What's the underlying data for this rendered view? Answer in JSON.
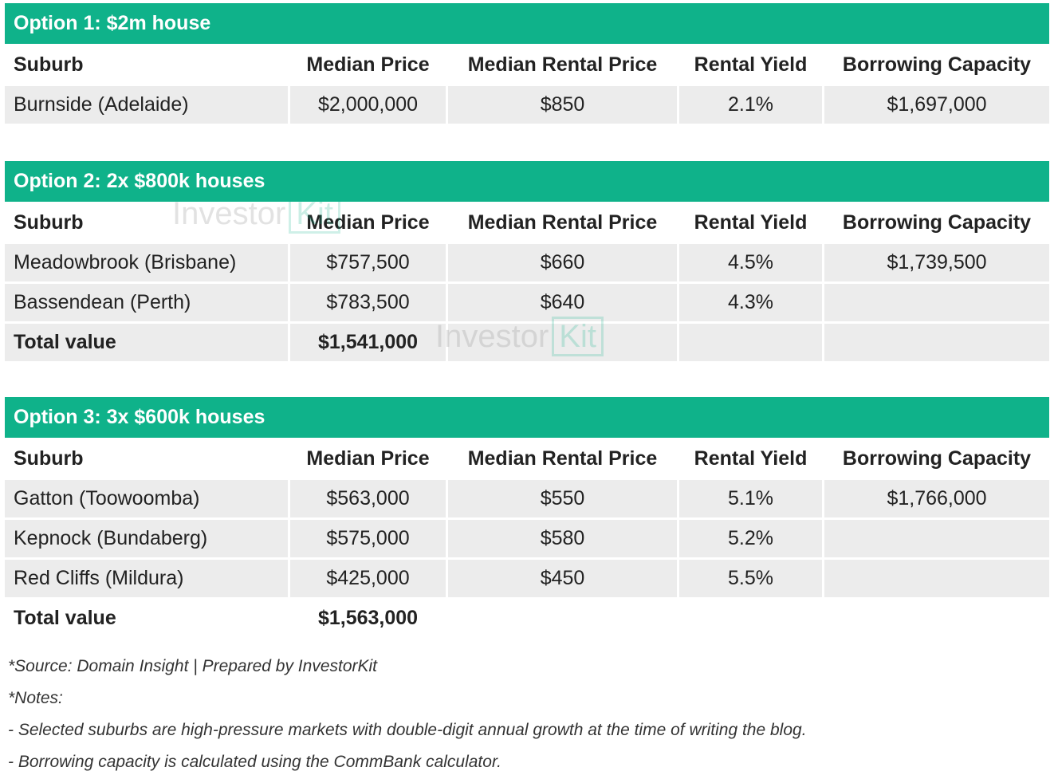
{
  "tables": [
    {
      "title": "Option 1: $2m house",
      "header": [
        "Suburb",
        "Median Price",
        "Median Rental Price",
        "Rental Yield",
        "Borrowing Capacity"
      ],
      "rows": [
        [
          "Burnside (Adelaide)",
          "$2,000,000",
          "$850",
          "2.1%",
          "$1,697,000"
        ]
      ]
    },
    {
      "title": "Option 2: 2x $800k houses",
      "header": [
        "Suburb",
        "Median Price",
        "Median Rental Price",
        "Rental Yield",
        "Borrowing Capacity"
      ],
      "rows": [
        [
          "Meadowbrook (Brisbane)",
          "$757,500",
          "$660",
          "4.5%",
          "$1,739,500"
        ],
        [
          "Bassendean (Perth)",
          "$783,500",
          "$640",
          "4.3%"
        ]
      ],
      "total": [
        "Total value",
        "$1,541,000"
      ]
    },
    {
      "title": "Option 3: 3x $600k houses",
      "header": [
        "Suburb",
        "Median Price",
        "Median Rental Price",
        "Rental Yield",
        "Borrowing Capacity"
      ],
      "rows": [
        [
          "Gatton (Toowoomba)",
          "$563,000",
          "$550",
          "5.1%",
          "$1,766,000"
        ],
        [
          "Kepnock (Bundaberg)",
          "$575,000",
          "$580",
          "5.2%"
        ],
        [
          "Red Cliffs (Mildura)",
          "$425,000",
          "$450",
          "5.5%"
        ]
      ],
      "total": [
        "Total value",
        "$1,563,000"
      ]
    }
  ],
  "notes": [
    "*Source: Domain Insight | Prepared by InvestorKit",
    "*Notes:",
    "- Selected suburbs are high-pressure markets with double-digit annual growth at the time of writing the blog.",
    "- Borrowing capacity is calculated using the CommBank calculator."
  ],
  "watermark": {
    "word": "Investor",
    "mark": "Kit"
  }
}
